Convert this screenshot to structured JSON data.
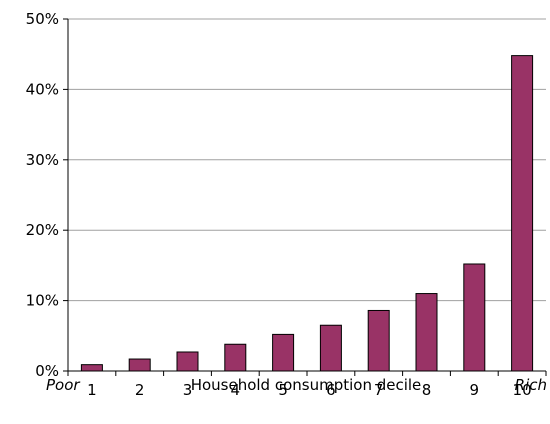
{
  "chart_data": {
    "type": "bar",
    "categories": [
      "1",
      "2",
      "3",
      "4",
      "5",
      "6",
      "7",
      "8",
      "9",
      "10"
    ],
    "values": [
      0.9,
      1.7,
      2.7,
      3.8,
      5.2,
      6.5,
      8.6,
      11.0,
      15.2,
      44.8
    ],
    "xlabel": "Household consumption decile",
    "ylabel": "",
    "ylim": [
      0,
      50
    ],
    "yticks": [
      0,
      10,
      20,
      30,
      40,
      50
    ],
    "ytick_labels": [
      "0%",
      "10%",
      "20%",
      "30%",
      "40%",
      "50%"
    ],
    "x_left_note": "Poor",
    "x_right_note": "Rich",
    "grid": "horizontal",
    "legend": "none",
    "colors": {
      "bar": "#993366",
      "bar_edge": "#000000",
      "grid": "#a0a0a0",
      "axis": "#000000"
    }
  }
}
